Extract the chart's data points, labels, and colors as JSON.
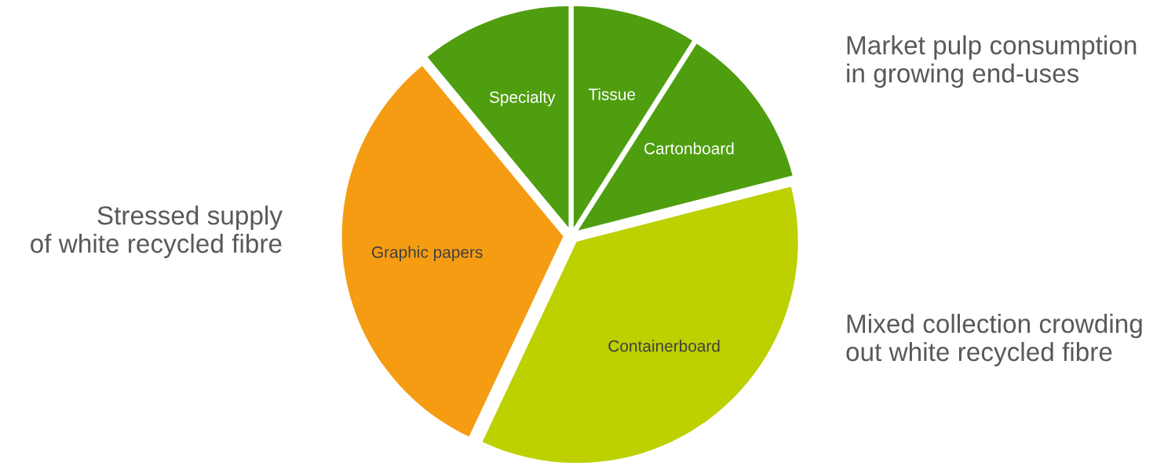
{
  "chart_data": {
    "type": "pie",
    "categories": [
      "Tissue",
      "Cartonboard",
      "Containerboard",
      "Graphic papers",
      "Specialty"
    ],
    "values": [
      9,
      12,
      36,
      32,
      11
    ],
    "colors": [
      "#4f9e0f",
      "#4f9e0f",
      "#bdd000",
      "#f59c12",
      "#4f9e0f"
    ],
    "annotations": [
      "Market pulp consumption\nin growing end-uses",
      "Mixed collection crowding\nout white recycled fibre",
      "Stressed supply\nof white recycled fibre"
    ],
    "legend": false
  }
}
